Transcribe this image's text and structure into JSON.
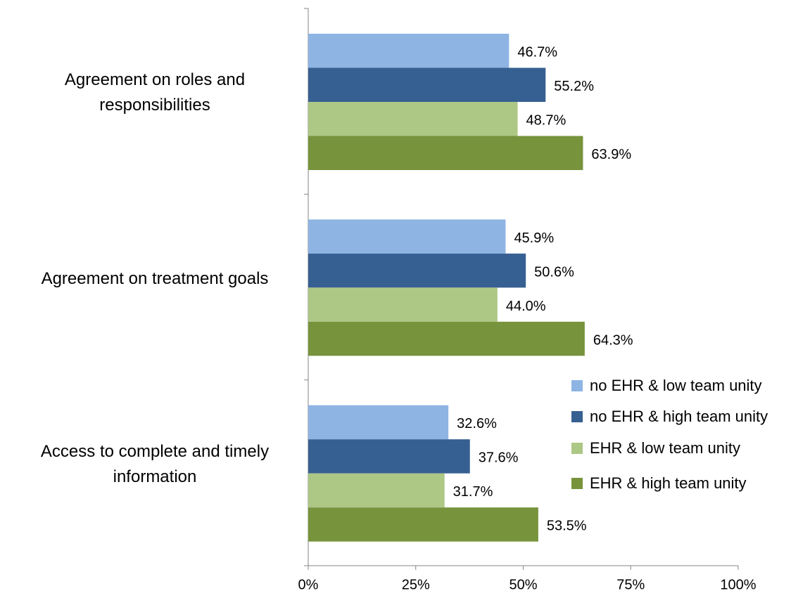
{
  "chart_data": {
    "type": "bar",
    "orientation": "horizontal",
    "categories": [
      "Agreement on roles and responsibilities",
      "Agreement on treatment goals",
      "Access to complete and timely information"
    ],
    "series": [
      {
        "name": "no EHR & low team unity",
        "color": "#8eb4e3",
        "values": [
          46.7,
          45.9,
          32.6
        ],
        "value_labels": [
          "46.7%",
          "45.9%",
          "32.6%"
        ]
      },
      {
        "name": "no EHR & high team unity",
        "color": "#376092",
        "values": [
          55.2,
          50.6,
          37.6
        ],
        "value_labels": [
          "55.2%",
          "50.6%",
          "37.6%"
        ]
      },
      {
        "name": "EHR & low team unity",
        "color": "#adc785",
        "values": [
          48.7,
          44.0,
          31.7
        ],
        "value_labels": [
          "48.7%",
          "44.0%",
          "31.7%"
        ]
      },
      {
        "name": "EHR & high team unity",
        "color": "#77933c",
        "values": [
          63.9,
          64.3,
          53.5
        ],
        "value_labels": [
          "63.9%",
          "64.3%",
          "53.5%"
        ]
      }
    ],
    "xlim": [
      0,
      100
    ],
    "xticks": [
      {
        "value": 0,
        "label": "0%"
      },
      {
        "value": 25,
        "label": "25%"
      },
      {
        "value": 50,
        "label": "50%"
      },
      {
        "value": 75,
        "label": "75%"
      },
      {
        "value": 100,
        "label": "100%"
      }
    ],
    "legend": "right"
  }
}
